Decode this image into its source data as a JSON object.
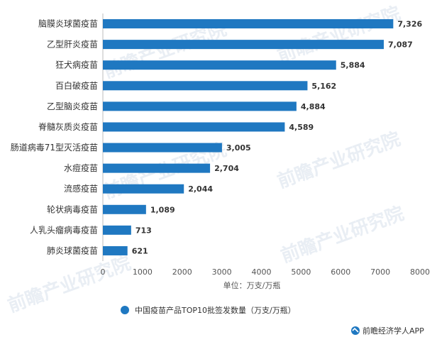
{
  "chart_data": {
    "type": "bar",
    "orientation": "horizontal",
    "categories": [
      "脑膜炎球菌疫苗",
      "乙型肝炎疫苗",
      "狂犬病疫苗",
      "百白破疫苗",
      "乙型脑炎疫苗",
      "脊髓灰质炎疫苗",
      "肠道病毒71型灭活疫苗",
      "水痘疫苗",
      "流感疫苗",
      "轮状病毒疫苗",
      "人乳头瘤病毒疫苗",
      "肺炎球菌疫苗"
    ],
    "values": [
      7326,
      7087,
      5884,
      5162,
      4884,
      4589,
      3005,
      2704,
      2044,
      1089,
      713,
      621
    ],
    "value_labels": [
      "7,326",
      "7,087",
      "5,884",
      "5,162",
      "4,884",
      "4,589",
      "3,005",
      "2,704",
      "2,044",
      "1,089",
      "713",
      "621"
    ],
    "xlim": [
      0,
      8000
    ],
    "xticks": [
      "0",
      "1000",
      "2000",
      "3000",
      "4000",
      "5000",
      "6000",
      "7000",
      "8000"
    ],
    "tick_values": [
      0,
      1000,
      2000,
      3000,
      4000,
      5000,
      6000,
      7000,
      8000
    ],
    "axis_note": "单位：万支/万瓶",
    "legend": [
      "中国疫苗产品TOP10批签发数量（万支/万瓶）"
    ],
    "legend_position": "bottom-center",
    "grid": false,
    "bar_color": "#1f78c1"
  },
  "footer": {
    "source": "前瞻经济学人APP"
  },
  "watermark": {
    "text": "前瞻产业研究院"
  }
}
